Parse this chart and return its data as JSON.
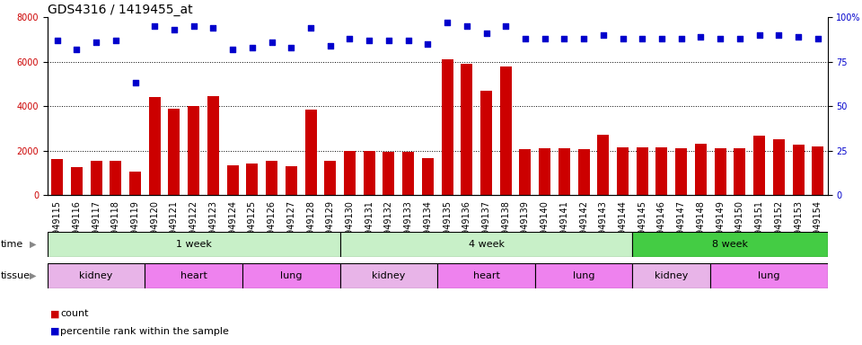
{
  "title": "GDS4316 / 1419455_at",
  "samples": [
    "GSM949115",
    "GSM949116",
    "GSM949117",
    "GSM949118",
    "GSM949119",
    "GSM949120",
    "GSM949121",
    "GSM949122",
    "GSM949123",
    "GSM949124",
    "GSM949125",
    "GSM949126",
    "GSM949127",
    "GSM949128",
    "GSM949129",
    "GSM949130",
    "GSM949131",
    "GSM949132",
    "GSM949133",
    "GSM949134",
    "GSM949135",
    "GSM949136",
    "GSM949137",
    "GSM949138",
    "GSM949139",
    "GSM949140",
    "GSM949141",
    "GSM949142",
    "GSM949143",
    "GSM949144",
    "GSM949145",
    "GSM949146",
    "GSM949147",
    "GSM949148",
    "GSM949149",
    "GSM949150",
    "GSM949151",
    "GSM949152",
    "GSM949153",
    "GSM949154"
  ],
  "counts": [
    1600,
    1250,
    1550,
    1550,
    1050,
    4400,
    3900,
    4000,
    4450,
    1350,
    1400,
    1550,
    1300,
    3850,
    1550,
    2000,
    2000,
    1950,
    1950,
    1650,
    6100,
    5900,
    4700,
    5800,
    2050,
    2100,
    2100,
    2050,
    2700,
    2150,
    2150,
    2150,
    2100,
    2300,
    2100,
    2100,
    2650,
    2500,
    2250,
    2200
  ],
  "percentile": [
    87,
    82,
    86,
    87,
    63,
    95,
    93,
    95,
    94,
    82,
    83,
    86,
    83,
    94,
    84,
    88,
    87,
    87,
    87,
    85,
    97,
    95,
    91,
    95,
    88,
    88,
    88,
    88,
    90,
    88,
    88,
    88,
    88,
    89,
    88,
    88,
    90,
    90,
    89,
    88
  ],
  "bar_color": "#cc0000",
  "dot_color": "#0000cc",
  "ylim_left": [
    0,
    8000
  ],
  "ylim_right": [
    0,
    100
  ],
  "yticks_left": [
    0,
    2000,
    4000,
    6000,
    8000
  ],
  "yticks_right": [
    0,
    25,
    50,
    75,
    100
  ],
  "time_groups": [
    {
      "label": "1 week",
      "start": 0,
      "end": 14,
      "color": "#c8f0c8"
    },
    {
      "label": "4 week",
      "start": 15,
      "end": 29,
      "color": "#c8f0c8"
    },
    {
      "label": "8 week",
      "start": 30,
      "end": 39,
      "color": "#44cc44"
    }
  ],
  "tissue_groups": [
    {
      "label": "kidney",
      "start": 0,
      "end": 4,
      "color": "#e8b4e8"
    },
    {
      "label": "heart",
      "start": 5,
      "end": 9,
      "color": "#ee82ee"
    },
    {
      "label": "lung",
      "start": 10,
      "end": 14,
      "color": "#ee82ee"
    },
    {
      "label": "kidney",
      "start": 15,
      "end": 19,
      "color": "#e8b4e8"
    },
    {
      "label": "heart",
      "start": 20,
      "end": 24,
      "color": "#ee82ee"
    },
    {
      "label": "lung",
      "start": 25,
      "end": 29,
      "color": "#ee82ee"
    },
    {
      "label": "kidney",
      "start": 30,
      "end": 33,
      "color": "#e8b4e8"
    },
    {
      "label": "lung",
      "start": 34,
      "end": 39,
      "color": "#ee82ee"
    }
  ],
  "tick_fontsize": 7,
  "title_fontsize": 10,
  "label_fontsize": 8,
  "bg_color": "#ffffff"
}
